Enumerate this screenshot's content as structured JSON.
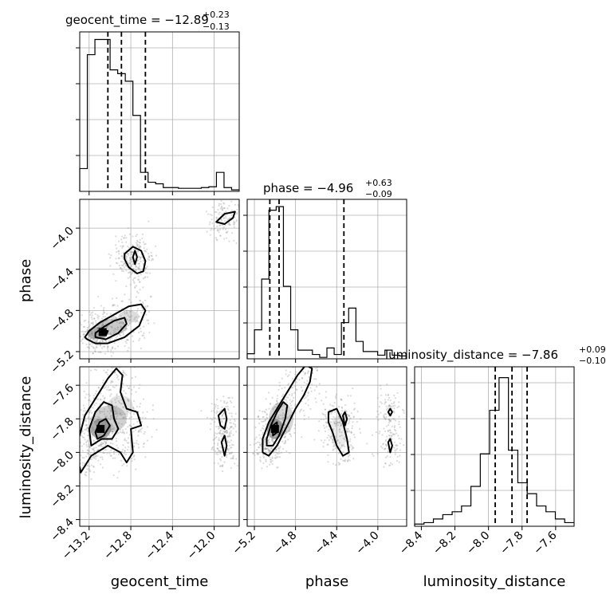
{
  "chart_data": {
    "type": "corner",
    "parameters": [
      {
        "name": "geocent_time",
        "label": "geocent_time",
        "title": "geocent_time = −12.89",
        "title_plus": "+0.23",
        "title_minus": "−0.13",
        "range": [
          -13.29,
          -11.76
        ],
        "ticks": [
          -13.2,
          -12.8,
          -12.4,
          -12.0
        ],
        "tick_labels": [
          "−13.2",
          "−12.8",
          "−12.4",
          "−12.0"
        ],
        "quantiles": [
          -13.02,
          -12.89,
          -12.66
        ],
        "hist_counts": [
          0.3,
          1.8,
          2.0,
          2.0,
          1.6,
          1.55,
          1.45,
          1.0,
          0.25,
          0.12,
          0.1,
          0.05,
          0.05,
          0.04,
          0.04,
          0.04,
          0.05,
          0.06,
          0.25,
          0.05,
          0.02
        ],
        "hist_ylim": [
          0,
          2.1
        ]
      },
      {
        "name": "phase",
        "label": "phase",
        "title": "phase = −4.96",
        "title_plus": "+0.63",
        "title_minus": "−0.09",
        "range": [
          -5.27,
          -3.72
        ],
        "ticks": [
          -5.2,
          -4.8,
          -4.4,
          -4.0
        ],
        "tick_labels": [
          "−5.2",
          "−4.8",
          "−4.4",
          "−4.0"
        ],
        "quantiles": [
          -5.05,
          -4.96,
          -4.33
        ],
        "hist_counts": [
          0.07,
          0.4,
          1.1,
          2.05,
          2.1,
          1.0,
          0.4,
          0.12,
          0.12,
          0.06,
          0.02,
          0.15,
          0.06,
          0.5,
          0.7,
          0.24,
          0.1,
          0.1,
          0.05,
          0.12,
          0.05,
          0.04
        ],
        "hist_ylim": [
          0,
          2.2
        ]
      },
      {
        "name": "luminosity_distance",
        "label": "luminosity_distance",
        "title": "luminosity_distance = −7.86",
        "title_plus": "+0.09",
        "title_minus": "−0.10",
        "range": [
          -8.44,
          -7.49
        ],
        "ticks": [
          -8.4,
          -8.2,
          -8.0,
          -7.8,
          -7.6
        ],
        "tick_labels": [
          "−8.4",
          "−8.2",
          "−8.0",
          "−7.8",
          "−7.6"
        ],
        "quantiles": [
          -7.96,
          -7.86,
          -7.77
        ],
        "hist_counts": [
          0.03,
          0.05,
          0.1,
          0.16,
          0.2,
          0.28,
          0.55,
          1.0,
          1.6,
          2.05,
          1.05,
          0.6,
          0.45,
          0.28,
          0.2,
          0.1,
          0.05
        ],
        "hist_ylim": [
          0,
          2.2
        ]
      }
    ],
    "pairs": [
      {
        "x": "geocent_time",
        "y": "phase",
        "peak": [
          -13.07,
          -5.01
        ],
        "contours": [
          [
            [
              -13.22,
              -5.08
            ],
            [
              -13.14,
              -5.12
            ],
            [
              -13.02,
              -5.12
            ],
            [
              -12.86,
              -5.06
            ],
            [
              -12.72,
              -4.95
            ],
            [
              -12.66,
              -4.8
            ],
            [
              -12.7,
              -4.74
            ],
            [
              -12.82,
              -4.76
            ],
            [
              -12.96,
              -4.84
            ],
            [
              -13.1,
              -4.92
            ],
            [
              -13.2,
              -5.0
            ],
            [
              -13.24,
              -5.06
            ],
            [
              -13.22,
              -5.08
            ]
          ],
          [
            [
              -13.14,
              -5.06
            ],
            [
              -13.04,
              -5.08
            ],
            [
              -12.92,
              -5.02
            ],
            [
              -12.84,
              -4.93
            ],
            [
              -12.86,
              -4.87
            ],
            [
              -12.96,
              -4.9
            ],
            [
              -13.06,
              -4.96
            ],
            [
              -13.14,
              -5.02
            ],
            [
              -13.14,
              -5.06
            ]
          ],
          [
            [
              -13.1,
              -5.02
            ],
            [
              -13.04,
              -5.04
            ],
            [
              -13.02,
              -5.0
            ],
            [
              -13.06,
              -4.99
            ],
            [
              -13.1,
              -5.02
            ]
          ],
          [
            [
              -12.78,
              -4.28
            ],
            [
              -12.76,
              -4.22
            ],
            [
              -12.74,
              -4.28
            ],
            [
              -12.76,
              -4.35
            ],
            [
              -12.78,
              -4.28
            ]
          ],
          [
            [
              -12.86,
              -4.25
            ],
            [
              -12.78,
              -4.18
            ],
            [
              -12.7,
              -4.22
            ],
            [
              -12.66,
              -4.32
            ],
            [
              -12.68,
              -4.42
            ],
            [
              -12.74,
              -4.44
            ],
            [
              -12.82,
              -4.38
            ],
            [
              -12.86,
              -4.3
            ],
            [
              -12.86,
              -4.25
            ]
          ],
          [
            [
              -11.98,
              -3.94
            ],
            [
              -11.9,
              -3.86
            ],
            [
              -11.8,
              -3.84
            ],
            [
              -11.82,
              -3.9
            ],
            [
              -11.9,
              -3.96
            ],
            [
              -11.98,
              -3.94
            ]
          ]
        ],
        "blobs": [
          [
            -13.12,
            -5.02,
            0.1,
            0.06,
            0.55
          ],
          [
            -12.98,
            -4.96,
            0.14,
            0.08,
            0.4
          ],
          [
            -12.82,
            -4.86,
            0.1,
            0.06,
            0.25
          ]
        ]
      },
      {
        "x": "geocent_time",
        "y": "luminosity_distance",
        "peak": [
          -13.09,
          -7.86
        ],
        "contours": [
          [
            [
              -13.28,
              -8.12
            ],
            [
              -13.18,
              -8.02
            ],
            [
              -13.02,
              -7.96
            ],
            [
              -12.9,
              -8.0
            ],
            [
              -12.84,
              -8.06
            ],
            [
              -12.78,
              -8.0
            ],
            [
              -12.8,
              -7.86
            ],
            [
              -12.7,
              -7.84
            ],
            [
              -12.74,
              -7.76
            ],
            [
              -12.84,
              -7.74
            ],
            [
              -12.9,
              -7.64
            ],
            [
              -12.88,
              -7.54
            ],
            [
              -12.94,
              -7.5
            ],
            [
              -13.02,
              -7.56
            ],
            [
              -13.12,
              -7.66
            ],
            [
              -13.24,
              -7.78
            ],
            [
              -13.3,
              -7.92
            ],
            [
              -13.3,
              -8.06
            ],
            [
              -13.28,
              -8.12
            ]
          ],
          [
            [
              -13.18,
              -7.96
            ],
            [
              -13.08,
              -7.92
            ],
            [
              -12.98,
              -7.92
            ],
            [
              -12.92,
              -7.86
            ],
            [
              -12.96,
              -7.8
            ],
            [
              -12.98,
              -7.72
            ],
            [
              -13.06,
              -7.7
            ],
            [
              -13.14,
              -7.76
            ],
            [
              -13.2,
              -7.86
            ],
            [
              -13.18,
              -7.96
            ]
          ],
          [
            [
              -13.12,
              -7.92
            ],
            [
              -13.06,
              -7.9
            ],
            [
              -13.0,
              -7.84
            ],
            [
              -13.04,
              -7.8
            ],
            [
              -13.1,
              -7.82
            ],
            [
              -13.14,
              -7.88
            ],
            [
              -13.12,
              -7.92
            ]
          ],
          [
            [
              -11.96,
              -7.78
            ],
            [
              -11.9,
              -7.74
            ],
            [
              -11.88,
              -7.8
            ],
            [
              -11.9,
              -7.86
            ],
            [
              -11.94,
              -7.84
            ],
            [
              -11.96,
              -7.78
            ]
          ],
          [
            [
              -11.93,
              -7.94
            ],
            [
              -11.9,
              -7.9
            ],
            [
              -11.88,
              -7.96
            ],
            [
              -11.9,
              -8.02
            ],
            [
              -11.93,
              -7.94
            ]
          ]
        ],
        "blobs": [
          [
            -13.09,
            -7.86,
            0.1,
            0.06,
            0.6
          ],
          [
            -13.0,
            -7.8,
            0.16,
            0.08,
            0.35
          ],
          [
            -12.9,
            -7.72,
            0.12,
            0.06,
            0.2
          ]
        ]
      },
      {
        "x": "phase",
        "y": "luminosity_distance",
        "peak": [
          -5.0,
          -7.86
        ],
        "contours": [
          [
            [
              -5.12,
              -8.0
            ],
            [
              -5.06,
              -8.02
            ],
            [
              -4.98,
              -7.96
            ],
            [
              -4.88,
              -7.84
            ],
            [
              -4.8,
              -7.74
            ],
            [
              -4.72,
              -7.66
            ],
            [
              -4.66,
              -7.58
            ],
            [
              -4.64,
              -7.5
            ],
            [
              -4.7,
              -7.48
            ],
            [
              -4.78,
              -7.54
            ],
            [
              -4.86,
              -7.62
            ],
            [
              -4.96,
              -7.72
            ],
            [
              -5.06,
              -7.82
            ],
            [
              -5.12,
              -7.92
            ],
            [
              -5.12,
              -8.0
            ]
          ],
          [
            [
              -5.08,
              -7.96
            ],
            [
              -5.02,
              -7.96
            ],
            [
              -4.96,
              -7.9
            ],
            [
              -4.9,
              -7.8
            ],
            [
              -4.88,
              -7.72
            ],
            [
              -4.92,
              -7.7
            ],
            [
              -4.98,
              -7.76
            ],
            [
              -5.04,
              -7.84
            ],
            [
              -5.08,
              -7.92
            ],
            [
              -5.08,
              -7.96
            ]
          ],
          [
            [
              -5.02,
              -7.9
            ],
            [
              -4.98,
              -7.88
            ],
            [
              -4.98,
              -7.82
            ],
            [
              -5.02,
              -7.84
            ],
            [
              -5.02,
              -7.9
            ]
          ],
          [
            [
              -4.48,
              -7.76
            ],
            [
              -4.4,
              -7.74
            ],
            [
              -4.34,
              -7.82
            ],
            [
              -4.3,
              -7.92
            ],
            [
              -4.28,
              -8.0
            ],
            [
              -4.34,
              -8.02
            ],
            [
              -4.4,
              -7.96
            ],
            [
              -4.44,
              -7.88
            ],
            [
              -4.48,
              -7.82
            ],
            [
              -4.48,
              -7.76
            ]
          ],
          [
            [
              -4.34,
              -7.78
            ],
            [
              -4.32,
              -7.76
            ],
            [
              -4.3,
              -7.8
            ],
            [
              -4.32,
              -7.84
            ],
            [
              -4.34,
              -7.78
            ]
          ],
          [
            [
              -3.9,
              -7.76
            ],
            [
              -3.88,
              -7.74
            ],
            [
              -3.86,
              -7.76
            ],
            [
              -3.88,
              -7.78
            ],
            [
              -3.9,
              -7.76
            ]
          ],
          [
            [
              -3.9,
              -7.94
            ],
            [
              -3.88,
              -7.92
            ],
            [
              -3.86,
              -7.96
            ],
            [
              -3.88,
              -8.0
            ],
            [
              -3.9,
              -7.94
            ]
          ]
        ],
        "blobs": [
          [
            -5.0,
            -7.86,
            0.08,
            0.06,
            0.6
          ],
          [
            -4.94,
            -7.8,
            0.12,
            0.1,
            0.3
          ],
          [
            -4.38,
            -7.88,
            0.08,
            0.1,
            0.15
          ]
        ]
      }
    ],
    "scatter_note_points": 0
  }
}
